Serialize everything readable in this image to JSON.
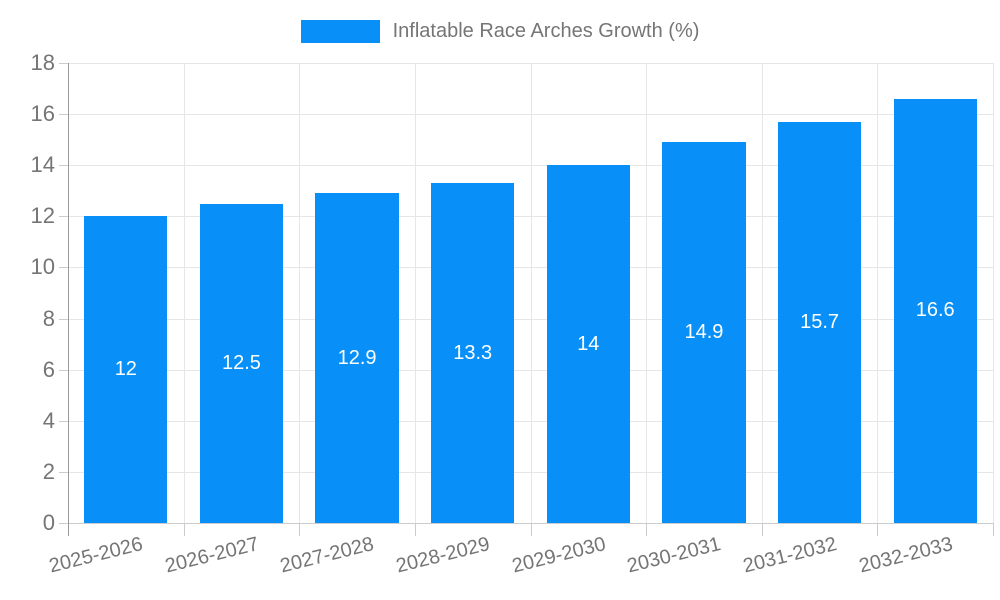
{
  "chart_data": {
    "type": "bar",
    "title": "",
    "legend_label": "Inflatable Race Arches Growth (%)",
    "legend_position": "top-center",
    "categories": [
      "2025-2026",
      "2026-2027",
      "2027-2028",
      "2028-2029",
      "2029-2030",
      "2030-2031",
      "2031-2032",
      "2032-2033"
    ],
    "values": [
      12,
      12.5,
      12.9,
      13.3,
      14,
      14.9,
      15.7,
      16.6
    ],
    "value_labels": [
      "12",
      "12.5",
      "12.9",
      "13.3",
      "14",
      "14.9",
      "15.7",
      "16.6"
    ],
    "xlabel": "",
    "ylabel": "",
    "ylim": [
      0,
      18
    ],
    "ytick_step": 2,
    "ytick_labels": [
      "0",
      "2",
      "4",
      "6",
      "8",
      "10",
      "12",
      "14",
      "16",
      "18"
    ],
    "grid": true,
    "colors": {
      "bar": "#0890f8",
      "grid": "#e6e6e6",
      "axis_line": "#999999",
      "tick": "#cccccc",
      "axis_label": "#757575",
      "value_label": "#ffffff",
      "background": "#ffffff"
    }
  }
}
